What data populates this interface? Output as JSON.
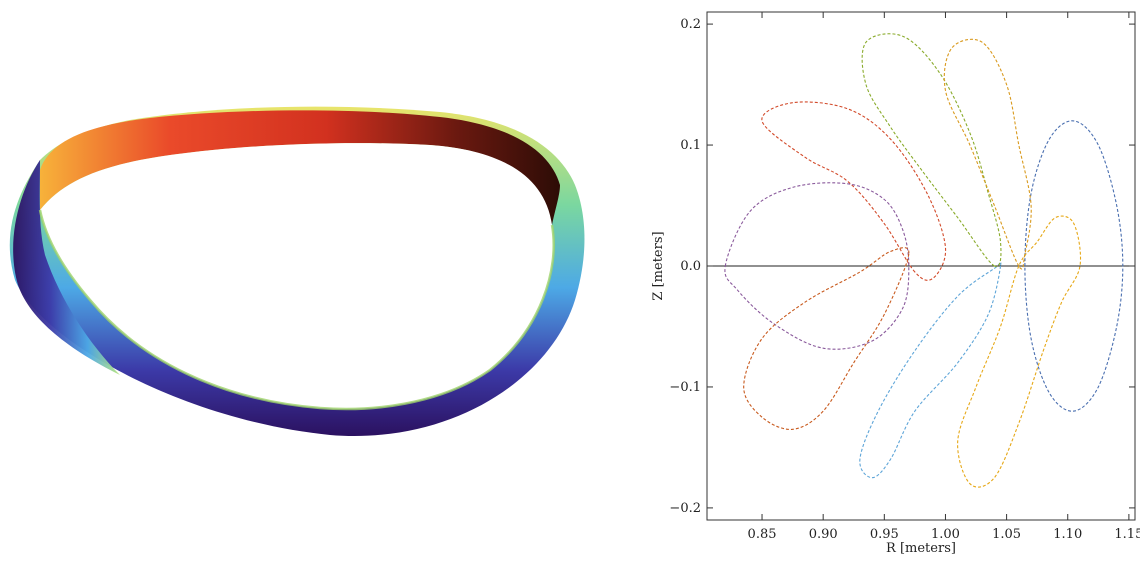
{
  "figure": {
    "left_panel": "3D rendering of a twisted toroidal surface with rainbow color map",
    "right_panel": "Poincare cross sections of the surface at several toroidal angles"
  },
  "chart_data": {
    "type": "line",
    "xlabel": "R [meters]",
    "ylabel": "Z [meters]",
    "xlim": [
      0.805,
      1.155
    ],
    "ylim": [
      -0.21,
      0.21
    ],
    "x_ticks": [
      0.85,
      0.9,
      0.95,
      1.0,
      1.05,
      1.1,
      1.15
    ],
    "x_tick_labels": [
      "0.85",
      "0.90",
      "0.95",
      "1.00",
      "1.05",
      "1.10",
      "1.15"
    ],
    "y_ticks": [
      -0.2,
      -0.1,
      0.0,
      0.1,
      0.2
    ],
    "y_tick_labels": [
      "−0.2",
      "−0.1",
      "0.0",
      "0.1",
      "0.2"
    ],
    "zero_line": true,
    "line_style": "dashed",
    "series": [
      {
        "color": "#4a6fb0",
        "points": [
          [
            1.065,
            0.0
          ],
          [
            1.07,
            0.06
          ],
          [
            1.085,
            0.105
          ],
          [
            1.105,
            0.12
          ],
          [
            1.125,
            0.1
          ],
          [
            1.14,
            0.05
          ],
          [
            1.145,
            0.0
          ],
          [
            1.14,
            -0.05
          ],
          [
            1.125,
            -0.1
          ],
          [
            1.105,
            -0.12
          ],
          [
            1.085,
            -0.105
          ],
          [
            1.07,
            -0.06
          ]
        ]
      },
      {
        "color": "#d24a2a",
        "points": [
          [
            0.975,
            -0.005
          ],
          [
            0.95,
            0.035
          ],
          [
            0.92,
            0.07
          ],
          [
            0.885,
            0.09
          ],
          [
            0.85,
            0.12
          ],
          [
            0.875,
            0.135
          ],
          [
            0.92,
            0.13
          ],
          [
            0.955,
            0.105
          ],
          [
            0.985,
            0.06
          ],
          [
            1.0,
            0.015
          ],
          [
            0.99,
            -0.01
          ]
        ]
      },
      {
        "color": "#8a5a9c",
        "points": [
          [
            0.82,
            0.0
          ],
          [
            0.84,
            0.045
          ],
          [
            0.875,
            0.065
          ],
          [
            0.92,
            0.068
          ],
          [
            0.95,
            0.055
          ],
          [
            0.965,
            0.03
          ],
          [
            0.97,
            0.0
          ],
          [
            0.965,
            -0.035
          ],
          [
            0.94,
            -0.062
          ],
          [
            0.9,
            -0.068
          ],
          [
            0.86,
            -0.048
          ],
          [
            0.83,
            -0.02
          ]
        ]
      },
      {
        "color": "#c85a1e",
        "points": [
          [
            0.97,
            0.01
          ],
          [
            0.95,
            -0.04
          ],
          [
            0.925,
            -0.08
          ],
          [
            0.9,
            -0.12
          ],
          [
            0.875,
            -0.135
          ],
          [
            0.85,
            -0.125
          ],
          [
            0.835,
            -0.1
          ],
          [
            0.85,
            -0.06
          ],
          [
            0.885,
            -0.03
          ],
          [
            0.93,
            -0.005
          ],
          [
            0.955,
            0.012
          ]
        ]
      },
      {
        "color": "#5ea5d8",
        "points": [
          [
            1.045,
            0.0
          ],
          [
            1.035,
            -0.04
          ],
          [
            1.01,
            -0.08
          ],
          [
            0.975,
            -0.12
          ],
          [
            0.955,
            -0.16
          ],
          [
            0.94,
            -0.175
          ],
          [
            0.93,
            -0.16
          ],
          [
            0.945,
            -0.12
          ],
          [
            0.975,
            -0.07
          ],
          [
            1.01,
            -0.025
          ],
          [
            1.04,
            -0.002
          ]
        ]
      },
      {
        "color": "#e6a817",
        "points": [
          [
            1.06,
            0.0
          ],
          [
            1.045,
            -0.05
          ],
          [
            1.025,
            -0.1
          ],
          [
            1.01,
            -0.145
          ],
          [
            1.02,
            -0.18
          ],
          [
            1.04,
            -0.175
          ],
          [
            1.06,
            -0.13
          ],
          [
            1.08,
            -0.07
          ],
          [
            1.095,
            -0.03
          ],
          [
            1.11,
            0.0
          ],
          [
            1.105,
            0.035
          ],
          [
            1.09,
            0.04
          ],
          [
            1.075,
            0.02
          ]
        ]
      },
      {
        "color": "#8aab2c",
        "points": [
          [
            1.04,
            0.0
          ],
          [
            1.01,
            0.04
          ],
          [
            0.98,
            0.08
          ],
          [
            0.955,
            0.115
          ],
          [
            0.935,
            0.15
          ],
          [
            0.935,
            0.185
          ],
          [
            0.965,
            0.19
          ],
          [
            0.995,
            0.16
          ],
          [
            1.02,
            0.11
          ],
          [
            1.035,
            0.06
          ],
          [
            1.045,
            0.02
          ]
        ]
      },
      {
        "color": "#d99a1e",
        "points": [
          [
            1.06,
            0.0
          ],
          [
            1.04,
            0.05
          ],
          [
            1.02,
            0.1
          ],
          [
            1.0,
            0.145
          ],
          [
            1.005,
            0.18
          ],
          [
            1.03,
            0.185
          ],
          [
            1.05,
            0.15
          ],
          [
            1.06,
            0.1
          ],
          [
            1.07,
            0.05
          ],
          [
            1.065,
            0.01
          ]
        ]
      }
    ]
  }
}
